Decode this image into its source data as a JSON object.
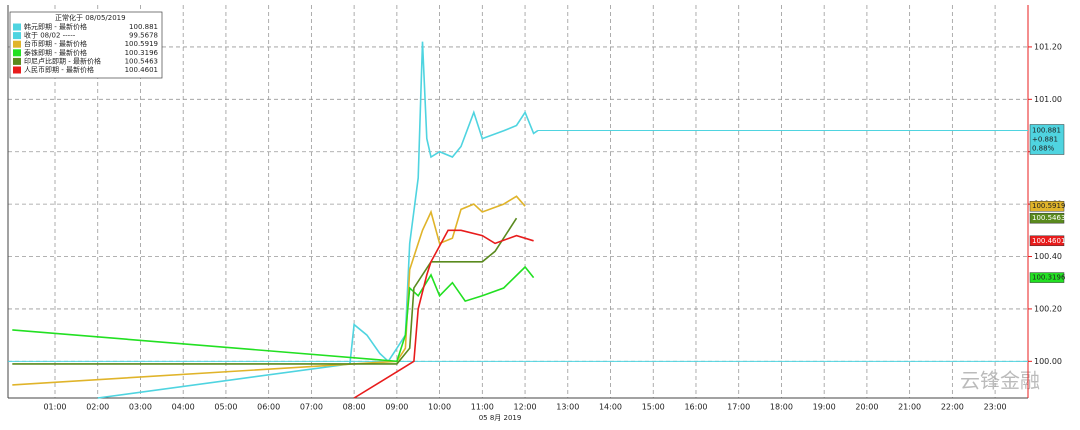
{
  "chart_data": {
    "type": "line",
    "legend_title": "正常化于 08/05/2019",
    "x_date_label": "05 8月 2019",
    "watermark": "云锋金融",
    "close_legend": {
      "name": "收于 08/02 -----",
      "value": 99.5678,
      "color": "#4fd4e0"
    },
    "hline": 100,
    "hline_color": "#4fd4e0",
    "tag_change": "+0.881",
    "tag_change_pct": "0.88%",
    "xlim": [
      -0.1,
      23.77
    ],
    "ylim": [
      99.86,
      101.36
    ],
    "xticks": [
      {
        "value": 1,
        "label": "01:00"
      },
      {
        "value": 2,
        "label": "02:00"
      },
      {
        "value": 3,
        "label": "03:00"
      },
      {
        "value": 4,
        "label": "04:00"
      },
      {
        "value": 5,
        "label": "05:00"
      },
      {
        "value": 6,
        "label": "06:00"
      },
      {
        "value": 7,
        "label": "07:00"
      },
      {
        "value": 8,
        "label": "08:00"
      },
      {
        "value": 9,
        "label": "09:00"
      },
      {
        "value": 10,
        "label": "10:00"
      },
      {
        "value": 11,
        "label": "11:00"
      },
      {
        "value": 12,
        "label": "12:00"
      },
      {
        "value": 13,
        "label": "13:00"
      },
      {
        "value": 14,
        "label": "14:00"
      },
      {
        "value": 15,
        "label": "15:00"
      },
      {
        "value": 16,
        "label": "16:00"
      },
      {
        "value": 17,
        "label": "17:00"
      },
      {
        "value": 18,
        "label": "18:00"
      },
      {
        "value": 19,
        "label": "19:00"
      },
      {
        "value": 20,
        "label": "20:00"
      },
      {
        "value": 21,
        "label": "21:00"
      },
      {
        "value": 22,
        "label": "22:00"
      },
      {
        "value": 23,
        "label": "23:00"
      }
    ],
    "yticks": [
      {
        "value": 100,
        "label": "100.00"
      },
      {
        "value": 100.2,
        "label": "100.20"
      },
      {
        "value": 100.4,
        "label": "100.40"
      },
      {
        "value": 100.6,
        "label": "100.60"
      },
      {
        "value": 100.8,
        "label": "100.80"
      },
      {
        "value": 101,
        "label": "101.00"
      },
      {
        "value": 101.2,
        "label": "101.20"
      }
    ],
    "grid": true,
    "series": [
      {
        "name": "韩元即期 - 最新价格",
        "color": "#4fd4e0",
        "tag": true,
        "x": [
          2.0,
          7.9,
          8.0,
          8.3,
          8.6,
          8.8,
          9.0,
          9.2,
          9.3,
          9.5,
          9.6,
          9.7,
          9.8,
          10.0,
          10.3,
          10.5,
          10.8,
          11.0,
          11.5,
          11.8,
          12.0,
          12.2,
          12.3
        ],
        "values": [
          99.86,
          99.99,
          100.14,
          100.1,
          100.03,
          100.0,
          100.05,
          100.1,
          100.45,
          100.7,
          101.22,
          100.85,
          100.78,
          100.8,
          100.78,
          100.82,
          100.95,
          100.85,
          100.88,
          100.9,
          100.95,
          100.87,
          100.881
        ]
      },
      {
        "name": "台币即期 - 最新价格",
        "color": "#e0b42a",
        "tag": true,
        "x": [
          0,
          9.0,
          9.2,
          9.3,
          9.5,
          9.6,
          9.8,
          10.0,
          10.3,
          10.5,
          10.8,
          11.0,
          11.5,
          11.8,
          12.0
        ],
        "values": [
          99.91,
          100.0,
          100.05,
          100.35,
          100.45,
          100.5,
          100.57,
          100.45,
          100.47,
          100.58,
          100.6,
          100.57,
          100.6,
          100.63,
          100.5919
        ]
      },
      {
        "name": "泰铢即期 - 最新价格",
        "color": "#22e022",
        "tag": true,
        "x": [
          0,
          9.0,
          9.2,
          9.3,
          9.5,
          9.8,
          10.0,
          10.3,
          10.6,
          11.0,
          11.5,
          12.0,
          12.2
        ],
        "values": [
          100.12,
          100.0,
          100.1,
          100.28,
          100.25,
          100.33,
          100.25,
          100.3,
          100.23,
          100.25,
          100.28,
          100.36,
          100.3196
        ]
      },
      {
        "name": "印尼卢比即期 - 最新价格",
        "color": "#5a8a1e",
        "tag": true,
        "x": [
          0,
          9.0,
          9.3,
          9.4,
          9.8,
          10.2,
          11.0,
          11.3,
          11.8
        ],
        "values": [
          99.99,
          99.99,
          100.05,
          100.28,
          100.38,
          100.38,
          100.38,
          100.42,
          100.5463
        ]
      },
      {
        "name": "人民币即期 - 最新价格",
        "color": "#e81c1c",
        "tag": true,
        "x": [
          8.0,
          9.2,
          9.4,
          9.5,
          9.7,
          9.8,
          10.2,
          10.5,
          11.0,
          11.3,
          11.8,
          12.2
        ],
        "values": [
          99.86,
          99.98,
          100.0,
          100.2,
          100.33,
          100.38,
          100.5,
          100.5,
          100.48,
          100.45,
          100.48,
          100.4601
        ]
      }
    ]
  }
}
